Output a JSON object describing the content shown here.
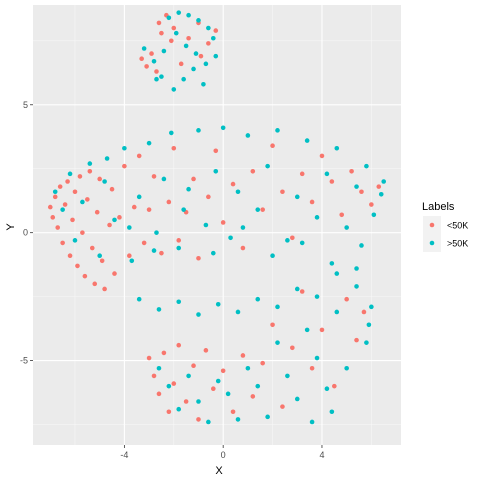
{
  "chart_data": {
    "type": "scatter",
    "title": "",
    "xlabel": "X",
    "ylabel": "Y",
    "xlim": [
      -7.7,
      7.2
    ],
    "ylim": [
      -8.3,
      8.9
    ],
    "x_ticks": [
      -4,
      0,
      4
    ],
    "y_ticks": [
      -5,
      0,
      5
    ],
    "grid": true,
    "legend": {
      "title": "Labels",
      "placement": "right"
    },
    "series": [
      {
        "name": "<50K",
        "color": "#F8766D",
        "points": [
          [
            -7.0,
            1.0
          ],
          [
            -6.9,
            0.6
          ],
          [
            -6.8,
            1.4
          ],
          [
            -6.7,
            0.2
          ],
          [
            -6.6,
            1.8
          ],
          [
            -6.5,
            -0.4
          ],
          [
            -6.4,
            1.1
          ],
          [
            -6.3,
            2.0
          ],
          [
            -6.2,
            -0.9
          ],
          [
            -6.1,
            0.5
          ],
          [
            -6.0,
            1.6
          ],
          [
            -5.9,
            -1.3
          ],
          [
            -5.8,
            2.2
          ],
          [
            -5.7,
            0.0
          ],
          [
            -5.6,
            -1.7
          ],
          [
            -5.5,
            1.3
          ],
          [
            -5.4,
            2.4
          ],
          [
            -5.3,
            -0.6
          ],
          [
            -5.2,
            -2.0
          ],
          [
            -5.1,
            0.8
          ],
          [
            -5.0,
            2.1
          ],
          [
            -4.9,
            -1.1
          ],
          [
            -4.8,
            -2.2
          ],
          [
            -4.6,
            0.3
          ],
          [
            -4.5,
            1.7
          ],
          [
            -4.4,
            -1.6
          ],
          [
            -4.2,
            0.6
          ],
          [
            -4.0,
            2.6
          ],
          [
            -3.8,
            -0.9
          ],
          [
            -3.6,
            1.0
          ],
          [
            -3.4,
            3.0
          ],
          [
            -3.2,
            -0.4
          ],
          [
            -3.0,
            0.9
          ],
          [
            -2.8,
            2.2
          ],
          [
            -2.5,
            -0.8
          ],
          [
            -2.2,
            1.2
          ],
          [
            -2.0,
            3.3
          ],
          [
            -1.8,
            -0.3
          ],
          [
            -1.5,
            0.8
          ],
          [
            -1.2,
            2.1
          ],
          [
            -1.0,
            -1.0
          ],
          [
            -0.6,
            1.4
          ],
          [
            -0.3,
            3.2
          ],
          [
            0.0,
            0.4
          ],
          [
            0.4,
            1.9
          ],
          [
            0.8,
            -0.6
          ],
          [
            1.2,
            2.4
          ],
          [
            1.6,
            0.9
          ],
          [
            2.0,
            3.4
          ],
          [
            2.4,
            1.6
          ],
          [
            2.8,
            -0.2
          ],
          [
            3.2,
            2.3
          ],
          [
            3.6,
            1.2
          ],
          [
            4.0,
            3.0
          ],
          [
            4.4,
            2.0
          ],
          [
            4.8,
            0.7
          ],
          [
            5.2,
            2.4
          ],
          [
            5.6,
            1.6
          ],
          [
            6.0,
            1.1
          ],
          [
            6.3,
            1.8
          ],
          [
            -3.0,
            -4.9
          ],
          [
            -2.8,
            -5.6
          ],
          [
            -2.6,
            -6.3
          ],
          [
            -2.4,
            -4.7
          ],
          [
            -2.2,
            -7.0
          ],
          [
            -2.0,
            -5.9
          ],
          [
            -1.8,
            -4.4
          ],
          [
            -1.5,
            -6.6
          ],
          [
            -1.2,
            -5.2
          ],
          [
            -1.0,
            -7.3
          ],
          [
            -0.7,
            -4.6
          ],
          [
            -0.4,
            -6.1
          ],
          [
            0.0,
            -5.4
          ],
          [
            0.4,
            -7.0
          ],
          [
            0.8,
            -4.8
          ],
          [
            1.2,
            -6.4
          ],
          [
            1.6,
            -5.1
          ],
          [
            2.0,
            -3.6
          ],
          [
            2.4,
            -6.8
          ],
          [
            2.8,
            -4.5
          ],
          [
            3.2,
            -2.3
          ],
          [
            3.6,
            -5.3
          ],
          [
            4.0,
            -3.8
          ],
          [
            4.5,
            -6.0
          ],
          [
            5.0,
            -2.6
          ],
          [
            5.4,
            -4.2
          ],
          [
            5.7,
            -3.1
          ],
          [
            -2.6,
            8.2
          ],
          [
            -2.5,
            7.8
          ],
          [
            -2.3,
            8.5
          ],
          [
            -2.1,
            7.5
          ],
          [
            -2.0,
            8.0
          ],
          [
            -3.3,
            6.8
          ],
          [
            -3.1,
            6.5
          ],
          [
            -2.9,
            7.0
          ],
          [
            -2.7,
            6.3
          ],
          [
            -1.7,
            6.6
          ],
          [
            -1.4,
            7.6
          ],
          [
            -1.0,
            8.2
          ],
          [
            -0.9,
            6.9
          ],
          [
            -0.6,
            7.4
          ],
          [
            -0.3,
            7.9
          ]
        ]
      },
      {
        "name": ">50K",
        "color": "#00BFC4",
        "points": [
          [
            -6.8,
            1.6
          ],
          [
            -6.5,
            0.9
          ],
          [
            -6.2,
            2.3
          ],
          [
            -6.0,
            -0.3
          ],
          [
            -5.7,
            1.2
          ],
          [
            -5.4,
            2.7
          ],
          [
            -5.0,
            -0.9
          ],
          [
            -4.7,
            2.9
          ],
          [
            -4.4,
            0.5
          ],
          [
            -4.0,
            3.3
          ],
          [
            -3.7,
            -1.1
          ],
          [
            -3.4,
            1.4
          ],
          [
            -3.0,
            3.5
          ],
          [
            -2.7,
            0.0
          ],
          [
            -2.4,
            2.1
          ],
          [
            -2.1,
            3.9
          ],
          [
            -1.8,
            -0.6
          ],
          [
            -1.4,
            1.7
          ],
          [
            -1.0,
            4.0
          ],
          [
            -0.7,
            0.3
          ],
          [
            -0.3,
            2.4
          ],
          [
            0.0,
            4.1
          ],
          [
            0.3,
            -0.2
          ],
          [
            0.6,
            1.6
          ],
          [
            1.0,
            3.8
          ],
          [
            1.4,
            0.9
          ],
          [
            1.8,
            2.6
          ],
          [
            2.2,
            4.0
          ],
          [
            2.6,
            -0.3
          ],
          [
            3.0,
            1.4
          ],
          [
            3.4,
            3.6
          ],
          [
            3.8,
            0.6
          ],
          [
            4.2,
            2.3
          ],
          [
            4.6,
            3.3
          ],
          [
            5.0,
            0.2
          ],
          [
            5.4,
            1.8
          ],
          [
            5.8,
            2.6
          ],
          [
            6.1,
            0.7
          ],
          [
            6.4,
            1.5
          ],
          [
            6.5,
            2.0
          ],
          [
            -4.8,
            2.0
          ],
          [
            -3.8,
            0.2
          ],
          [
            -2.8,
            -0.7
          ],
          [
            -1.6,
            0.9
          ],
          [
            -0.4,
            -0.8
          ],
          [
            0.8,
            0.2
          ],
          [
            2.0,
            -0.9
          ],
          [
            3.2,
            -0.4
          ],
          [
            4.4,
            -1.2
          ],
          [
            5.6,
            -0.5
          ],
          [
            -3.4,
            -2.6
          ],
          [
            -2.6,
            -3.0
          ],
          [
            -1.8,
            -2.7
          ],
          [
            -1.0,
            -3.2
          ],
          [
            -0.2,
            -2.8
          ],
          [
            0.6,
            -3.1
          ],
          [
            1.4,
            -2.6
          ],
          [
            2.2,
            -2.9
          ],
          [
            3.0,
            -2.2
          ],
          [
            3.8,
            -2.5
          ],
          [
            4.6,
            -1.6
          ],
          [
            5.4,
            -1.4
          ],
          [
            6.0,
            -2.9
          ],
          [
            5.9,
            -3.6
          ],
          [
            -2.6,
            -5.3
          ],
          [
            -2.2,
            -6.0
          ],
          [
            -1.8,
            -6.9
          ],
          [
            -1.4,
            -5.6
          ],
          [
            -1.0,
            -6.6
          ],
          [
            -0.6,
            -7.4
          ],
          [
            -0.2,
            -5.8
          ],
          [
            0.2,
            -6.3
          ],
          [
            0.6,
            -7.3
          ],
          [
            1.0,
            -5.3
          ],
          [
            1.4,
            -6.0
          ],
          [
            1.8,
            -7.2
          ],
          [
            2.2,
            -4.3
          ],
          [
            2.6,
            -5.6
          ],
          [
            3.0,
            -6.5
          ],
          [
            3.4,
            -3.8
          ],
          [
            3.8,
            -4.9
          ],
          [
            4.2,
            -6.1
          ],
          [
            4.6,
            -3.1
          ],
          [
            5.0,
            -5.3
          ],
          [
            5.4,
            -2.1
          ],
          [
            5.8,
            -4.3
          ],
          [
            4.4,
            -7.0
          ],
          [
            3.6,
            -7.4
          ],
          [
            -2.2,
            8.4
          ],
          [
            -1.8,
            8.6
          ],
          [
            -1.4,
            8.5
          ],
          [
            -1.0,
            8.3
          ],
          [
            -0.6,
            8.0
          ],
          [
            -1.9,
            7.8
          ],
          [
            -1.5,
            7.3
          ],
          [
            -1.1,
            7.0
          ],
          [
            -0.7,
            6.6
          ],
          [
            -0.3,
            6.9
          ],
          [
            -2.4,
            7.1
          ],
          [
            -2.8,
            6.7
          ],
          [
            -3.2,
            7.2
          ],
          [
            -2.5,
            6.1
          ],
          [
            -1.6,
            6.0
          ],
          [
            -1.2,
            6.4
          ],
          [
            -0.8,
            5.8
          ],
          [
            -2.0,
            5.6
          ],
          [
            -2.7,
            6.0
          ],
          [
            -0.4,
            7.6
          ]
        ]
      }
    ]
  }
}
